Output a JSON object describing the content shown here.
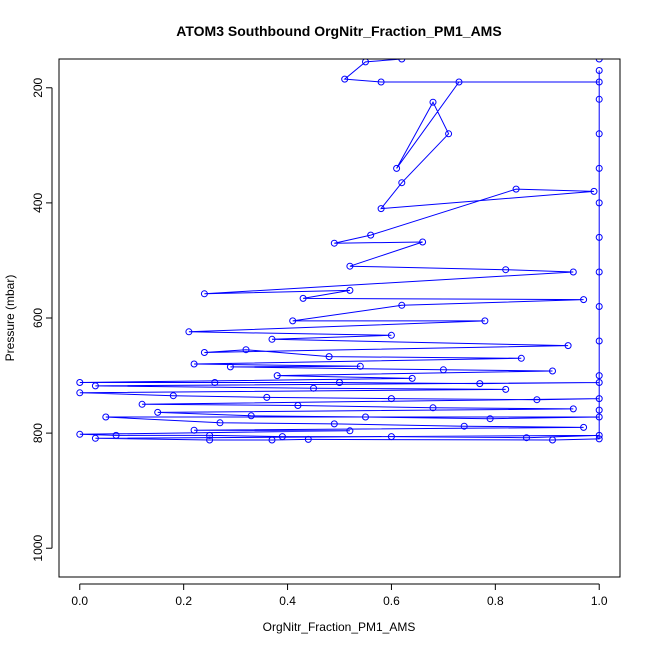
{
  "chart_data": {
    "type": "line",
    "title": "ATOM3 Southbound OrgNitr_Fraction_PM1_AMS",
    "xlabel": "OrgNitr_Fraction_PM1_AMS",
    "ylabel": "Pressure (mbar)",
    "xlim": [
      -0.04,
      1.04
    ],
    "ylim": [
      1050,
      150
    ],
    "y_reversed": true,
    "x_ticks": [
      0.0,
      0.2,
      0.4,
      0.6,
      0.8,
      1.0
    ],
    "x_tick_labels": [
      "0.0",
      "0.2",
      "0.4",
      "0.6",
      "0.8",
      "1.0"
    ],
    "y_ticks": [
      200,
      400,
      600,
      800,
      1000
    ],
    "y_tick_labels": [
      "200",
      "400",
      "600",
      "800",
      "1000"
    ],
    "grid": false,
    "legend": "none",
    "series_color": "#0000ff",
    "marker": "open-circle",
    "series": [
      {
        "values": [
          [
            1.0,
            150
          ],
          [
            0.62,
            150
          ],
          [
            0.55,
            155
          ],
          [
            0.51,
            185
          ],
          [
            0.58,
            190
          ],
          [
            1.0,
            190
          ],
          [
            0.73,
            190
          ],
          [
            0.61,
            340
          ],
          [
            0.68,
            225
          ],
          [
            0.71,
            280
          ],
          [
            0.62,
            365
          ],
          [
            0.58,
            410
          ],
          [
            0.99,
            380
          ],
          [
            0.84,
            376
          ],
          [
            0.56,
            456
          ],
          [
            0.49,
            470
          ],
          [
            0.66,
            468
          ],
          [
            0.52,
            510
          ],
          [
            0.82,
            516
          ],
          [
            0.95,
            520
          ],
          [
            0.24,
            558
          ],
          [
            0.52,
            552
          ],
          [
            0.43,
            566
          ],
          [
            0.97,
            568
          ],
          [
            0.62,
            578
          ],
          [
            0.41,
            605
          ],
          [
            0.78,
            605
          ],
          [
            0.21,
            624
          ],
          [
            0.6,
            630
          ],
          [
            0.37,
            637
          ],
          [
            0.94,
            648
          ],
          [
            0.24,
            660
          ],
          [
            0.32,
            655
          ],
          [
            0.48,
            667
          ],
          [
            0.85,
            670
          ],
          [
            0.22,
            680
          ],
          [
            0.54,
            684
          ],
          [
            0.29,
            685
          ],
          [
            0.7,
            690
          ],
          [
            0.91,
            692
          ],
          [
            0.38,
            700
          ],
          [
            0.64,
            705
          ],
          [
            0.0,
            712
          ],
          [
            0.26,
            712
          ],
          [
            0.5,
            712
          ],
          [
            0.77,
            714
          ],
          [
            1.0,
            712
          ],
          [
            0.03,
            718
          ],
          [
            0.45,
            722
          ],
          [
            0.82,
            724
          ],
          [
            0.0,
            730
          ],
          [
            0.18,
            735
          ],
          [
            0.36,
            738
          ],
          [
            0.6,
            740
          ],
          [
            0.88,
            742
          ],
          [
            1.0,
            740
          ],
          [
            0.12,
            750
          ],
          [
            0.42,
            752
          ],
          [
            0.68,
            756
          ],
          [
            0.95,
            758
          ],
          [
            0.15,
            764
          ],
          [
            0.33,
            770
          ],
          [
            0.55,
            772
          ],
          [
            0.79,
            775
          ],
          [
            1.0,
            772
          ],
          [
            0.05,
            772
          ],
          [
            0.27,
            782
          ],
          [
            0.49,
            784
          ],
          [
            0.74,
            788
          ],
          [
            0.97,
            790
          ],
          [
            0.22,
            795
          ],
          [
            0.52,
            796
          ],
          [
            0.0,
            802
          ],
          [
            0.07,
            804
          ],
          [
            0.25,
            804
          ],
          [
            0.39,
            806
          ],
          [
            0.6,
            806
          ],
          [
            0.86,
            808
          ],
          [
            1.0,
            804
          ],
          [
            0.03,
            809
          ],
          [
            0.25,
            812
          ],
          [
            0.37,
            812
          ],
          [
            0.44,
            811
          ],
          [
            0.91,
            812
          ],
          [
            1.0,
            810
          ],
          [
            1.0,
            760
          ],
          [
            1.0,
            700
          ],
          [
            1.0,
            640
          ],
          [
            1.0,
            580
          ],
          [
            1.0,
            520
          ],
          [
            1.0,
            460
          ],
          [
            1.0,
            400
          ],
          [
            1.0,
            340
          ],
          [
            1.0,
            280
          ],
          [
            1.0,
            220
          ],
          [
            1.0,
            170
          ]
        ]
      }
    ]
  }
}
